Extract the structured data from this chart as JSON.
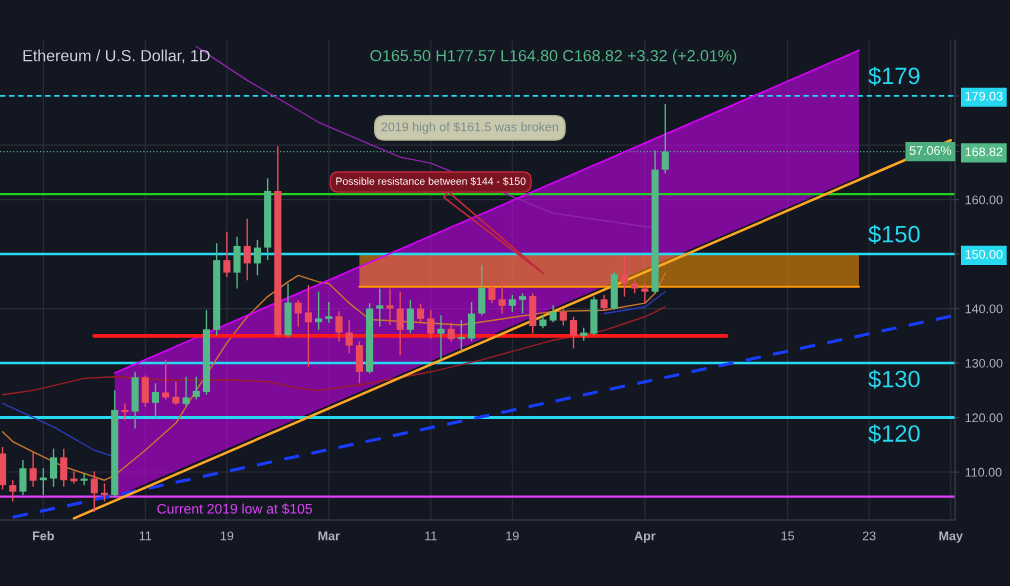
{
  "chart_data": {
    "type": "candlestick",
    "title": "Ethereum / U.S. Dollar, 1D",
    "subtitle": "O165.50 H177.57 L164.80 C168.82 +3.32 (+2.01%)",
    "x": [
      "2019-01-28",
      "2019-01-29",
      "2019-01-30",
      "2019-01-31",
      "2019-02-01",
      "2019-02-02",
      "2019-02-03",
      "2019-02-04",
      "2019-02-05",
      "2019-02-06",
      "2019-02-07",
      "2019-02-08",
      "2019-02-09",
      "2019-02-10",
      "2019-02-11",
      "2019-02-12",
      "2019-02-13",
      "2019-02-14",
      "2019-02-15",
      "2019-02-16",
      "2019-02-17",
      "2019-02-18",
      "2019-02-19",
      "2019-02-20",
      "2019-02-21",
      "2019-02-22",
      "2019-02-23",
      "2019-02-24",
      "2019-02-25",
      "2019-02-26",
      "2019-02-27",
      "2019-02-28",
      "2019-03-01",
      "2019-03-02",
      "2019-03-03",
      "2019-03-04",
      "2019-03-05",
      "2019-03-06",
      "2019-03-07",
      "2019-03-08",
      "2019-03-09",
      "2019-03-10",
      "2019-03-11",
      "2019-03-12",
      "2019-03-13",
      "2019-03-14",
      "2019-03-15",
      "2019-03-16",
      "2019-03-17",
      "2019-03-18",
      "2019-03-19",
      "2019-03-20",
      "2019-03-21",
      "2019-03-22",
      "2019-03-23",
      "2019-03-24",
      "2019-03-25",
      "2019-03-26",
      "2019-03-27",
      "2019-03-28",
      "2019-03-29",
      "2019-03-30",
      "2019-03-31",
      "2019-04-01",
      "2019-04-02",
      "2019-04-03"
    ],
    "ohlc": [
      [
        113.4,
        114.6,
        106.8,
        107.6
      ],
      [
        107.6,
        108.5,
        104.6,
        106.4
      ],
      [
        106.4,
        112.2,
        105.8,
        110.7
      ],
      [
        110.7,
        113.7,
        107.3,
        108.4
      ],
      [
        108.5,
        110.7,
        105.8,
        109.0
      ],
      [
        108.8,
        114.3,
        107.3,
        112.7
      ],
      [
        112.7,
        114.3,
        107.3,
        108.5
      ],
      [
        108.8,
        110.1,
        107.9,
        108.3
      ],
      [
        108.4,
        109.8,
        107.6,
        108.8
      ],
      [
        108.8,
        110.1,
        102.7,
        106.1
      ],
      [
        106.2,
        107.9,
        104.6,
        105.8
      ],
      [
        105.8,
        125.0,
        105.5,
        121.4
      ],
      [
        121.4,
        122.6,
        119.5,
        121.0
      ],
      [
        121.1,
        128.4,
        118.0,
        127.4
      ],
      [
        127.4,
        127.7,
        122.0,
        122.7
      ],
      [
        122.7,
        126.3,
        119.9,
        124.7
      ],
      [
        124.6,
        130.6,
        123.3,
        123.7
      ],
      [
        123.8,
        126.6,
        122.3,
        122.6
      ],
      [
        122.5,
        127.5,
        122.0,
        123.7
      ],
      [
        123.8,
        127.5,
        123.3,
        124.9
      ],
      [
        124.7,
        139.7,
        124.2,
        136.2
      ],
      [
        136.1,
        152.0,
        135.1,
        148.9
      ],
      [
        148.9,
        154.1,
        145.8,
        146.6
      ],
      [
        146.6,
        153.2,
        143.7,
        151.5
      ],
      [
        151.5,
        156.5,
        145.2,
        148.3
      ],
      [
        148.3,
        152.6,
        146.1,
        151.2
      ],
      [
        151.2,
        163.9,
        148.9,
        161.6
      ],
      [
        161.6,
        169.8,
        134.8,
        135.1
      ],
      [
        135.1,
        144.6,
        134.8,
        141.1
      ],
      [
        141.1,
        141.6,
        136.7,
        139.1
      ],
      [
        139.3,
        144.3,
        129.3,
        137.5
      ],
      [
        137.5,
        143.1,
        136.1,
        138.2
      ],
      [
        138.1,
        141.2,
        137.4,
        138.6
      ],
      [
        138.6,
        139.5,
        133.9,
        135.6
      ],
      [
        135.6,
        137.9,
        131.8,
        133.2
      ],
      [
        133.3,
        134.0,
        126.3,
        128.4
      ],
      [
        128.4,
        141.0,
        128.1,
        140.0
      ],
      [
        140.0,
        143.7,
        136.7,
        140.6
      ],
      [
        140.6,
        143.7,
        137.0,
        140.0
      ],
      [
        140.0,
        143.1,
        131.5,
        136.1
      ],
      [
        136.1,
        141.6,
        135.5,
        140.0
      ],
      [
        140.0,
        140.9,
        137.3,
        138.1
      ],
      [
        138.2,
        139.7,
        134.5,
        135.4
      ],
      [
        135.4,
        138.8,
        130.6,
        136.3
      ],
      [
        136.3,
        137.4,
        133.9,
        134.4
      ],
      [
        134.4,
        137.9,
        132.1,
        134.8
      ],
      [
        134.5,
        141.2,
        134.0,
        139.1
      ],
      [
        139.1,
        148.0,
        138.8,
        143.8
      ],
      [
        143.8,
        144.6,
        141.0,
        141.6
      ],
      [
        141.7,
        144.9,
        139.1,
        140.5
      ],
      [
        140.5,
        142.5,
        139.4,
        141.7
      ],
      [
        141.6,
        142.8,
        139.1,
        142.3
      ],
      [
        142.3,
        142.8,
        135.4,
        136.8
      ],
      [
        136.8,
        138.8,
        136.4,
        138.0
      ],
      [
        137.8,
        140.6,
        137.5,
        139.4
      ],
      [
        139.4,
        139.9,
        136.9,
        137.8
      ],
      [
        137.9,
        138.5,
        132.7,
        135.0
      ],
      [
        135.0,
        136.5,
        134.1,
        135.6
      ],
      [
        135.4,
        142.2,
        135.1,
        141.7
      ],
      [
        141.7,
        142.5,
        139.7,
        140.1
      ],
      [
        140.0,
        146.8,
        139.8,
        146.3
      ],
      [
        146.3,
        149.5,
        142.2,
        144.6
      ],
      [
        144.6,
        145.3,
        142.8,
        143.7
      ],
      [
        143.7,
        144.6,
        141.0,
        143.1
      ],
      [
        143.1,
        169.0,
        142.8,
        165.5
      ],
      [
        165.5,
        177.57,
        164.8,
        168.82
      ]
    ],
    "colors": [
      "#eb4d5c",
      "#eb4d5c",
      "#53b987",
      "#eb4d5c",
      "#53b987",
      "#53b987",
      "#eb4d5c",
      "#eb4d5c",
      "#53b987",
      "#eb4d5c",
      "#eb4d5c",
      "#53b987",
      "#eb4d5c",
      "#53b987",
      "#eb4d5c",
      "#53b987",
      "#eb4d5c",
      "#eb4d5c",
      "#53b987",
      "#53b987",
      "#53b987",
      "#53b987",
      "#eb4d5c",
      "#53b987",
      "#eb4d5c",
      "#53b987",
      "#53b987",
      "#eb4d5c",
      "#53b987",
      "#eb4d5c",
      "#eb4d5c",
      "#53b987",
      "#53b987",
      "#eb4d5c",
      "#eb4d5c",
      "#eb4d5c",
      "#53b987",
      "#53b987",
      "#eb4d5c",
      "#eb4d5c",
      "#53b987",
      "#eb4d5c",
      "#eb4d5c",
      "#53b987",
      "#eb4d5c",
      "#53b987",
      "#53b987",
      "#53b987",
      "#eb4d5c",
      "#eb4d5c",
      "#53b987",
      "#53b987",
      "#eb4d5c",
      "#53b987",
      "#53b987",
      "#eb4d5c",
      "#eb4d5c",
      "#53b987",
      "#53b987",
      "#eb4d5c",
      "#53b987",
      "#eb4d5c",
      "#eb4d5c",
      "#eb4d5c",
      "#53b987",
      "#53b987"
    ],
    "series": [
      {
        "type": "line",
        "color": "#c8782a",
        "x": [
          "2019-01-28",
          "2019-01-29",
          "2019-01-31",
          "2019-02-03",
          "2019-02-07",
          "2019-02-08",
          "2019-02-11",
          "2019-02-14",
          "2019-02-16",
          "2019-02-19",
          "2019-02-21",
          "2019-02-23",
          "2019-02-25",
          "2019-02-26",
          "2019-02-28",
          "2019-03-01",
          "2019-03-03",
          "2019-03-05",
          "2019-03-14",
          "2019-03-23",
          "2019-03-28",
          "2019-04-01",
          "2019-04-02",
          "2019-04-03"
        ],
        "values": [
          117.4,
          115.6,
          113.7,
          111.0,
          108.5,
          109.4,
          114.0,
          119.0,
          125.0,
          133.7,
          138.5,
          142.2,
          144.9,
          146.1,
          144.9,
          144.6,
          141.0,
          138.0,
          137.0,
          139.5,
          139.7,
          141.0,
          142.8,
          146.5
        ]
      },
      {
        "type": "line",
        "color": "#9b1f24",
        "x": [
          "2019-01-28",
          "2019-01-31",
          "2019-02-05",
          "2019-02-08",
          "2019-02-13",
          "2019-02-19",
          "2019-02-23",
          "2019-02-26",
          "2019-02-28",
          "2019-03-05",
          "2019-03-11",
          "2019-03-16",
          "2019-03-23",
          "2019-03-28",
          "2019-04-01",
          "2019-04-03"
        ],
        "values": [
          124.2,
          125.0,
          127.2,
          127.5,
          126.9,
          126.9,
          126.6,
          125.4,
          125.0,
          126.3,
          128.4,
          130.6,
          134.2,
          136.0,
          138.5,
          140.3
        ]
      },
      {
        "type": "line",
        "color": "#2a3bb5",
        "x": [
          "2019-01-28",
          "2019-02-02",
          "2019-02-06",
          "2019-02-08",
          "2019-03-15",
          "2019-03-28",
          "2019-04-01",
          "2019-04-03"
        ],
        "values": [
          122.6,
          118.3,
          114.0,
          112.8,
          null,
          139.1,
          140.3,
          143.1
        ]
      },
      {
        "type": "line",
        "color": "#8e24aa",
        "x": [
          "2019-02-16",
          "2019-02-18",
          "2019-02-21",
          "2019-02-28",
          "2019-03-08",
          "2019-03-11",
          "2019-03-23",
          "2019-04-02"
        ],
        "values": [
          188.1,
          185.6,
          181.9,
          174.2,
          167.8,
          166.7,
          157.5,
          154.8
        ]
      },
      {
        "type": "line",
        "color": "#d500f9",
        "x": [
          "2019-02-08",
          "2019-04-22"
        ],
        "values": [
          128.2,
          187.4
        ],
        "lower": [
          105.4,
          164.2
        ],
        "upper": [
          128.2,
          187.4
        ]
      },
      {
        "type": "line",
        "color": "#ff9800",
        "x": [
          "2019-03-04",
          "2019-04-22"
        ],
        "values": [
          144,
          144
        ],
        "lower": [
          144,
          144
        ],
        "upper": [
          150,
          150
        ]
      },
      {
        "type": "line",
        "color": "#ff1a1a",
        "x": [
          "2019-02-06",
          "2019-04-09"
        ],
        "values": [
          135,
          135
        ]
      },
      {
        "type": "line",
        "color": "#1a3cff",
        "line_style": "dashed",
        "x": [
          "2019-01-29",
          "2019-05-01"
        ],
        "values": [
          101.7,
          138.6
        ]
      },
      {
        "type": "line",
        "color": "#ffa726",
        "x": [
          "2019-02-04",
          "2019-05-01"
        ],
        "values": [
          101.5,
          170.9
        ]
      }
    ],
    "ref_lines": [
      {
        "axis": "y",
        "value": 179.03,
        "label": "$179",
        "color": "#26d9f0",
        "line_style": "dashed"
      },
      {
        "axis": "y",
        "value": 168.82,
        "color": "#53b987",
        "line_style": "dotted"
      },
      {
        "axis": "y",
        "value": 161,
        "color": "#22d022"
      },
      {
        "axis": "y",
        "value": 150,
        "label": "$150",
        "color": "#26d9f0"
      },
      {
        "axis": "y",
        "value": 130,
        "label": "$130",
        "color": "#26d9f0"
      },
      {
        "axis": "y",
        "value": 120,
        "label": "$120",
        "color": "#26d9f0"
      },
      {
        "axis": "y",
        "value": 105.5,
        "label": "Current 2019 low at $105",
        "color": "#e040fb"
      }
    ],
    "annotations": [
      "2019 high of $161.5 was broken",
      "Possible resistance between $144 - $150",
      {
        "text": "57.06%",
        "x": "2019-04-29",
        "y": 168.82
      }
    ],
    "xlim": [
      "2019-01-27T18:00",
      "2019-05-01T10:00"
    ],
    "xticks": [
      {
        "value": "2019-02-01",
        "label": "Feb"
      },
      {
        "value": "2019-02-11",
        "label": "11"
      },
      {
        "value": "2019-02-19",
        "label": "19"
      },
      {
        "value": "2019-03-01",
        "label": "Mar"
      },
      {
        "value": "2019-03-11",
        "label": "11"
      },
      {
        "value": "2019-03-19",
        "label": "19"
      },
      {
        "value": "2019-04-01",
        "label": "Apr"
      },
      {
        "value": "2019-04-15",
        "label": "15"
      },
      {
        "value": "2019-04-23",
        "label": "23"
      },
      {
        "value": "2019-05-01",
        "label": "May"
      }
    ],
    "ylim": [
      101.2,
      189.3
    ],
    "yticks": [
      {
        "value": 110,
        "label": "110.00"
      },
      {
        "value": 120,
        "label": "120.00"
      },
      {
        "value": 130,
        "label": "130.00"
      },
      {
        "value": 140,
        "label": "140.00"
      },
      {
        "value": 150,
        "label": "150.00"
      },
      {
        "value": 160,
        "label": "160.00"
      },
      {
        "value": 168.82,
        "label": "168.82"
      },
      {
        "value": 170,
        "label": null
      },
      {
        "value": 179.03,
        "label": "179.03"
      }
    ],
    "grid": true
  }
}
